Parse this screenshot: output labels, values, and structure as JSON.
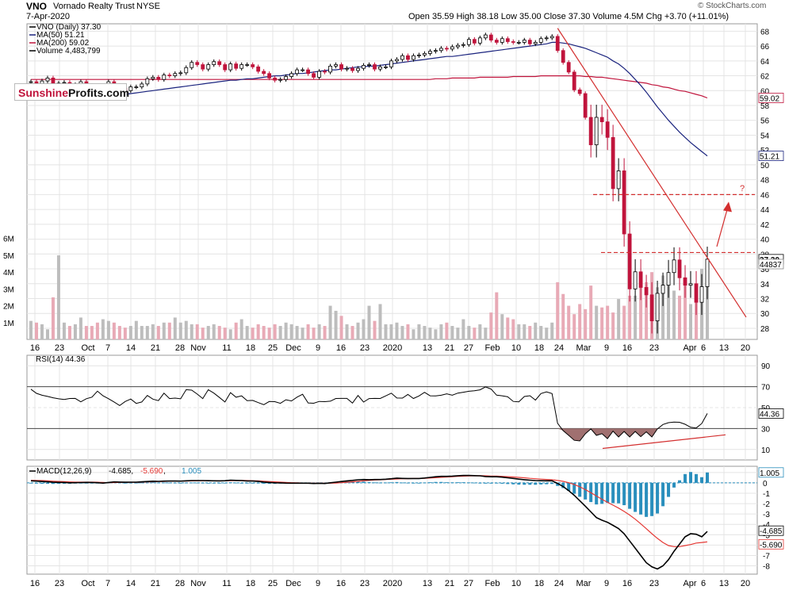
{
  "header": {
    "ticker": "VNO",
    "company": "Vornado Realty Trust",
    "exchange": "NYSE",
    "date": "7-Apr-2020",
    "ohlc": "Open 35.59  High 38.18  Low 35.00  Close 37.30  Volume 4.5M  Chg +3.70 (+11.01%)",
    "credit": "© StockCharts.com",
    "logo_red": "Sunshine",
    "logo_black": "Profits.com"
  },
  "colors": {
    "up": "#888888",
    "down": "#c0143c",
    "ma50": "#1a237e",
    "ma200": "#c0143c",
    "trend": "#d32f2f",
    "macd_hist": "#2a8fbd"
  },
  "chart_data": [
    {
      "type": "candlestick",
      "name": "price",
      "legend": [
        "VNO (Daily) 37.30",
        "MA(50) 51.21",
        "MA(200) 59.02",
        "Volume 4,483,799"
      ],
      "ylim": [
        26.5,
        69
      ],
      "y_ticks": [
        28,
        30,
        32,
        34,
        36,
        38,
        40,
        42,
        44,
        46,
        48,
        50,
        52,
        54,
        56,
        58,
        60,
        62,
        64,
        66,
        68
      ],
      "x_labels": [
        "16",
        "23",
        "Oct",
        "7",
        "14",
        "21",
        "28",
        "Nov",
        "11",
        "18",
        "25",
        "Dec",
        "9",
        "16",
        "23",
        "2020",
        "13",
        "21",
        "27",
        "Feb",
        "10",
        "18",
        "24",
        "Mar",
        "9",
        "16",
        "23",
        "Apr",
        "6",
        "13",
        "20"
      ],
      "last_labels": [
        "59.02",
        "51.21",
        "37.30",
        "44837"
      ],
      "volume_ticks": [
        "1M",
        "2M",
        "3M",
        "4M",
        "5M",
        "6M"
      ],
      "volume_max": 6.6,
      "closes": [
        61.2,
        60.9,
        61.3,
        61.7,
        60.6,
        61.0,
        61.1,
        60.5,
        60.8,
        61.2,
        60.7,
        60.2,
        59.8,
        60.5,
        61.2,
        60.7,
        60.3,
        60.0,
        60.5,
        60.5,
        60.9,
        61.6,
        61.8,
        61.5,
        62.1,
        62.0,
        62.3,
        62.4,
        63.1,
        63.8,
        63.5,
        62.9,
        63.5,
        63.9,
        63.5,
        62.8,
        63.6,
        63.0,
        63.5,
        63.5,
        63.2,
        62.6,
        62.3,
        61.7,
        61.4,
        61.5,
        61.9,
        62.3,
        62.8,
        62.8,
        62.3,
        61.8,
        62.6,
        62.5,
        63.3,
        63.5,
        62.9,
        63.0,
        62.7,
        63.0,
        63.4,
        63.5,
        62.9,
        63.2,
        63.2,
        64.0,
        64.2,
        64.7,
        64.2,
        64.7,
        64.8,
        65.0,
        65.3,
        65.4,
        65.7,
        65.6,
        65.9,
        66.1,
        66.2,
        66.9,
        66.4,
        67.1,
        67.5,
        66.8,
        66.5,
        67.0,
        66.6,
        66.5,
        66.5,
        66.8,
        66.3,
        66.5,
        67.0,
        67.1,
        67.3,
        65.4,
        63.8,
        62.5,
        60.1,
        59.6,
        56.4,
        52.7,
        56.4,
        55.8,
        53.7,
        46.8,
        49.2,
        40.7,
        33.3,
        35.6,
        33.5,
        32.5,
        29.0,
        32.7,
        33.8,
        35.5,
        37.2,
        34.8,
        33.8,
        34.0,
        31.5,
        33.6,
        37.3
      ],
      "volumes": [
        1.1,
        1.0,
        0.9,
        0.6,
        2.5,
        5.0,
        1.0,
        0.8,
        0.9,
        1.3,
        0.8,
        0.8,
        1.0,
        1.2,
        1.1,
        1.0,
        0.8,
        0.7,
        0.8,
        1.1,
        0.8,
        0.8,
        0.9,
        0.8,
        1.0,
        1.0,
        1.3,
        1.0,
        1.1,
        0.9,
        0.9,
        0.7,
        0.8,
        0.9,
        0.8,
        0.7,
        0.6,
        1.0,
        1.2,
        0.8,
        0.7,
        0.9,
        0.8,
        0.7,
        0.9,
        0.8,
        1.0,
        0.9,
        0.8,
        0.7,
        0.9,
        0.7,
        0.9,
        0.8,
        2.0,
        1.7,
        1.4,
        0.9,
        0.8,
        1.0,
        1.2,
        2.0,
        1.1,
        2.1,
        0.9,
        0.9,
        1.0,
        0.8,
        0.9,
        0.6,
        0.9,
        0.8,
        0.7,
        0.6,
        0.9,
        1.0,
        0.8,
        0.7,
        1.2,
        0.8,
        0.7,
        0.9,
        0.7,
        1.6,
        2.8,
        1.5,
        1.3,
        1.2,
        0.9,
        0.9,
        0.8,
        1.0,
        0.8,
        0.7,
        1.0,
        3.4,
        2.7,
        2.0,
        1.5,
        2.1,
        1.8,
        3.2,
        2.0,
        1.9,
        2.0,
        1.6,
        2.4,
        2.0,
        2.6,
        2.6,
        3.6,
        3.4,
        4.0,
        3.1,
        3.8,
        3.3,
        2.9,
        2.6,
        3.5,
        2.1,
        3.0,
        4.2,
        4.5
      ],
      "ma50": [
        59.3,
        59.2,
        59.2,
        59.1,
        59.1,
        59.0,
        59.0,
        59.0,
        59.0,
        59.1,
        59.1,
        59.1,
        59.2,
        59.2,
        59.3,
        59.4,
        59.5,
        59.5,
        59.6,
        59.7,
        59.8,
        59.9,
        60.0,
        60.1,
        60.2,
        60.3,
        60.4,
        60.5,
        60.6,
        60.7,
        60.8,
        60.9,
        61.0,
        61.1,
        61.2,
        61.3,
        61.4,
        61.4,
        61.5,
        61.6,
        61.6,
        61.7,
        61.8,
        61.9,
        62.0,
        62.0,
        62.1,
        62.2,
        62.3,
        62.3,
        62.4,
        62.5,
        62.6,
        62.7,
        62.8,
        62.8,
        62.9,
        63.0,
        63.1,
        63.2,
        63.2,
        63.3,
        63.3,
        63.4,
        63.5,
        63.6,
        63.7,
        63.8,
        63.9,
        64.0,
        64.1,
        64.2,
        64.3,
        64.4,
        64.5,
        64.6,
        64.6,
        64.7,
        64.8,
        64.9,
        65.0,
        65.1,
        65.2,
        65.3,
        65.4,
        65.5,
        65.6,
        65.7,
        65.8,
        65.9,
        66.0,
        66.1,
        66.2,
        66.3,
        66.5,
        66.5,
        66.4,
        66.3,
        66.1,
        65.9,
        65.7,
        65.4,
        65.1,
        64.8,
        64.5,
        64.0,
        63.6,
        63.0,
        62.3,
        61.5,
        60.7,
        59.8,
        58.8,
        57.8,
        56.9,
        56.0,
        55.2,
        54.4,
        53.7,
        53.0,
        52.4,
        51.8,
        51.21
      ],
      "ma200": [
        61.5,
        61.5,
        61.5,
        61.5,
        61.5,
        61.5,
        61.5,
        61.5,
        61.5,
        61.5,
        61.5,
        61.5,
        61.5,
        61.5,
        61.5,
        61.5,
        61.5,
        61.5,
        61.5,
        61.5,
        61.5,
        61.5,
        61.5,
        61.5,
        61.5,
        61.5,
        61.5,
        61.5,
        61.5,
        61.5,
        61.5,
        61.5,
        61.5,
        61.5,
        61.5,
        61.5,
        61.5,
        61.5,
        61.5,
        61.5,
        61.5,
        61.5,
        61.5,
        61.5,
        61.5,
        61.5,
        61.5,
        61.5,
        61.5,
        61.5,
        61.5,
        61.5,
        61.5,
        61.5,
        61.5,
        61.5,
        61.5,
        61.5,
        61.5,
        61.5,
        61.5,
        61.5,
        61.5,
        61.5,
        61.5,
        61.5,
        61.5,
        61.5,
        61.5,
        61.5,
        61.5,
        61.5,
        61.5,
        61.6,
        61.6,
        61.6,
        61.7,
        61.7,
        61.7,
        61.7,
        61.7,
        61.8,
        61.8,
        61.8,
        61.8,
        61.8,
        61.8,
        61.9,
        61.9,
        61.9,
        61.9,
        61.9,
        62.0,
        62.0,
        62.0,
        62.0,
        62.0,
        62.0,
        62.0,
        62.0,
        61.9,
        61.9,
        61.8,
        61.8,
        61.7,
        61.6,
        61.5,
        61.4,
        61.3,
        61.2,
        61.1,
        61.0,
        60.8,
        60.7,
        60.5,
        60.4,
        60.2,
        60.0,
        59.9,
        59.7,
        59.5,
        59.3,
        59.02
      ],
      "trendline": {
        "from": [
          95,
          68.4
        ],
        "to": [
          124,
          29.5
        ]
      },
      "resistance_levels": [
        46,
        38.2
      ],
      "arrow": {
        "from": [
          121,
          39.0
        ],
        "to": [
          124,
          44.5
        ],
        "label": "?"
      }
    },
    {
      "type": "line",
      "name": "rsi",
      "legend": "RSI(14) 44.36",
      "ylim": [
        0,
        100
      ],
      "y_ticks": [
        10,
        30,
        50,
        70,
        90
      ],
      "last_label": "44.36",
      "values": [
        67.6,
        63.6,
        61.8,
        60.7,
        59.4,
        58.4,
        57.7,
        58.7,
        58.8,
        55.5,
        58.5,
        60.0,
        65.7,
        61.3,
        58.5,
        55.4,
        52.0,
        55.8,
        58.2,
        54.0,
        55.4,
        61.6,
        58.1,
        56.7,
        63.8,
        58.6,
        59.1,
        58.4,
        67.1,
        66.7,
        62.9,
        58.6,
        67.1,
        63.9,
        59.7,
        55.4,
        64.3,
        59.9,
        61.2,
        56.7,
        56.9,
        54.8,
        52.8,
        55.8,
        55.7,
        54.1,
        57.5,
        56.4,
        60.0,
        62.7,
        54.5,
        54.2,
        55.9,
        55.7,
        56.1,
        58.7,
        58.8,
        58.8,
        54.3,
        61.6,
        55.3,
        58.6,
        58.8,
        58.7,
        61.2,
        63.8,
        59.2,
        59.1,
        62.6,
        58.7,
        61.1,
        64.6,
        61.3,
        61.1,
        61.8,
        63.2,
        61.9,
        63.9,
        64.7,
        65.6,
        66.1,
        67.0,
        69.8,
        67.7,
        61.9,
        61.3,
        60.3,
        55.9,
        55.5,
        60.6,
        61.4,
        57.2,
        63.4,
        65.1,
        63.4,
        35.0,
        28.0,
        23.5,
        18.8,
        18.2,
        25.0,
        29.6,
        23.5,
        25.1,
        20.4,
        27.5,
        22.0,
        27.2,
        22.0,
        27.2,
        22.3,
        26.9,
        22.0,
        29.7,
        33.9,
        35.6,
        36.2,
        36.0,
        34.1,
        31.2,
        30.5,
        34.8,
        44.36
      ],
      "divergence_line": {
        "from": [
          112,
          11.0
        ],
        "to": [
          124,
          24.0
        ]
      }
    },
    {
      "type": "line",
      "name": "macd",
      "legend": {
        "title": "MACD(12,26,9)",
        "macd": "-4.685",
        "signal": "-5.690",
        "hist": "1.005"
      },
      "ylim": [
        -8.8,
        1.6
      ],
      "y_ticks": [
        1,
        0,
        -1,
        -2,
        -3,
        -4,
        -5,
        -6,
        -7,
        -8
      ],
      "last_labels": [
        "1.005",
        "-4.685",
        "-5.690"
      ],
      "macd": [
        0.2,
        0.17,
        0.13,
        0.1,
        0.06,
        0.05,
        0.04,
        0.01,
        0.02,
        0.03,
        0.05,
        0.04,
        0.02,
        -0.02,
        0.04,
        0.09,
        0.08,
        0.06,
        0.07,
        0.07,
        0.1,
        0.13,
        0.16,
        0.15,
        0.17,
        0.18,
        0.18,
        0.17,
        0.2,
        0.22,
        0.22,
        0.22,
        0.21,
        0.2,
        0.19,
        0.21,
        0.26,
        0.24,
        0.22,
        0.18,
        0.18,
        0.14,
        0.08,
        0.04,
        0.01,
        -0.0,
        -0.02,
        -0.03,
        -0.03,
        -0.03,
        -0.03,
        -0.06,
        -0.04,
        -0.06,
        0.01,
        0.07,
        0.13,
        0.19,
        0.24,
        0.3,
        0.32,
        0.31,
        0.32,
        0.32,
        0.35,
        0.4,
        0.46,
        0.43,
        0.42,
        0.42,
        0.42,
        0.47,
        0.53,
        0.59,
        0.63,
        0.63,
        0.65,
        0.69,
        0.71,
        0.71,
        0.7,
        0.68,
        0.61,
        0.59,
        0.59,
        0.55,
        0.49,
        0.43,
        0.36,
        0.31,
        0.26,
        0.22,
        0.21,
        0.2,
        0.2,
        -0.05,
        -0.35,
        -0.75,
        -1.2,
        -1.72,
        -2.25,
        -2.8,
        -3.35,
        -3.6,
        -3.8,
        -4.1,
        -4.4,
        -4.9,
        -5.6,
        -6.3,
        -7.0,
        -7.7,
        -8.1,
        -8.3,
        -8.0,
        -7.4,
        -6.6,
        -5.9,
        -5.2,
        -4.9,
        -4.95,
        -5.2,
        -4.685
      ],
      "signal": [
        0.25,
        0.24,
        0.22,
        0.19,
        0.16,
        0.14,
        0.12,
        0.09,
        0.07,
        0.07,
        0.07,
        0.07,
        0.06,
        0.04,
        0.02,
        0.03,
        0.05,
        0.06,
        0.06,
        0.06,
        0.07,
        0.09,
        0.11,
        0.13,
        0.14,
        0.16,
        0.17,
        0.17,
        0.18,
        0.19,
        0.2,
        0.21,
        0.22,
        0.21,
        0.21,
        0.2,
        0.21,
        0.22,
        0.23,
        0.22,
        0.21,
        0.19,
        0.16,
        0.13,
        0.1,
        0.07,
        0.04,
        0.02,
        0.0,
        -0.01,
        -0.02,
        -0.03,
        -0.03,
        -0.04,
        -0.03,
        -0.02,
        0.02,
        0.06,
        0.1,
        0.15,
        0.2,
        0.24,
        0.28,
        0.3,
        0.32,
        0.35,
        0.38,
        0.4,
        0.41,
        0.42,
        0.43,
        0.44,
        0.47,
        0.5,
        0.54,
        0.57,
        0.6,
        0.63,
        0.65,
        0.67,
        0.68,
        0.69,
        0.68,
        0.66,
        0.65,
        0.63,
        0.6,
        0.57,
        0.53,
        0.49,
        0.44,
        0.4,
        0.36,
        0.33,
        0.3,
        0.24,
        0.15,
        0.02,
        -0.15,
        -0.38,
        -0.65,
        -0.95,
        -1.27,
        -1.58,
        -1.87,
        -2.15,
        -2.43,
        -2.75,
        -3.1,
        -3.5,
        -3.95,
        -4.42,
        -4.9,
        -5.35,
        -5.75,
        -6.05,
        -6.15,
        -6.15,
        -6.05,
        -5.95,
        -5.8,
        -5.75,
        -5.69
      ],
      "histogram": [
        -0.05,
        -0.07,
        -0.09,
        -0.09,
        -0.1,
        -0.09,
        -0.08,
        -0.08,
        -0.05,
        -0.04,
        -0.02,
        -0.03,
        -0.04,
        -0.06,
        0.02,
        0.06,
        0.03,
        0.0,
        0.01,
        0.01,
        0.03,
        0.04,
        0.05,
        0.02,
        0.03,
        0.02,
        0.01,
        0.0,
        0.02,
        0.03,
        0.02,
        0.01,
        -0.01,
        -0.01,
        -0.02,
        0.01,
        0.05,
        0.02,
        -0.01,
        -0.04,
        -0.03,
        -0.05,
        -0.08,
        -0.09,
        -0.09,
        -0.07,
        -0.06,
        -0.05,
        -0.03,
        -0.02,
        -0.01,
        -0.03,
        -0.01,
        -0.02,
        0.04,
        0.09,
        0.11,
        0.13,
        0.14,
        0.15,
        0.12,
        0.07,
        0.04,
        0.02,
        0.03,
        0.05,
        0.08,
        0.03,
        0.01,
        0.0,
        -0.01,
        0.03,
        0.06,
        0.09,
        0.09,
        0.06,
        0.05,
        0.06,
        0.06,
        0.04,
        0.02,
        -0.01,
        -0.07,
        -0.07,
        -0.06,
        -0.08,
        -0.11,
        -0.14,
        -0.17,
        -0.18,
        -0.18,
        -0.18,
        -0.15,
        -0.13,
        -0.1,
        -0.29,
        -0.5,
        -0.77,
        -1.05,
        -1.34,
        -1.6,
        -1.85,
        -2.08,
        -2.02,
        -1.93,
        -1.95,
        -1.97,
        -2.15,
        -2.5,
        -2.8,
        -3.05,
        -3.28,
        -3.2,
        -2.95,
        -2.25,
        -1.35,
        -0.45,
        0.25,
        0.85,
        1.05,
        0.85,
        0.55,
        1.005
      ]
    },
    {
      "type": "axis",
      "name": "date-axis-bottom",
      "x_labels": [
        "16",
        "23",
        "Oct",
        "7",
        "14",
        "21",
        "28",
        "Nov",
        "11",
        "18",
        "25",
        "Dec",
        "9",
        "16",
        "23",
        "2020",
        "13",
        "21",
        "27",
        "Feb",
        "10",
        "18",
        "24",
        "Mar",
        "9",
        "16",
        "23",
        "Apr",
        "6",
        "13",
        "20"
      ]
    }
  ]
}
